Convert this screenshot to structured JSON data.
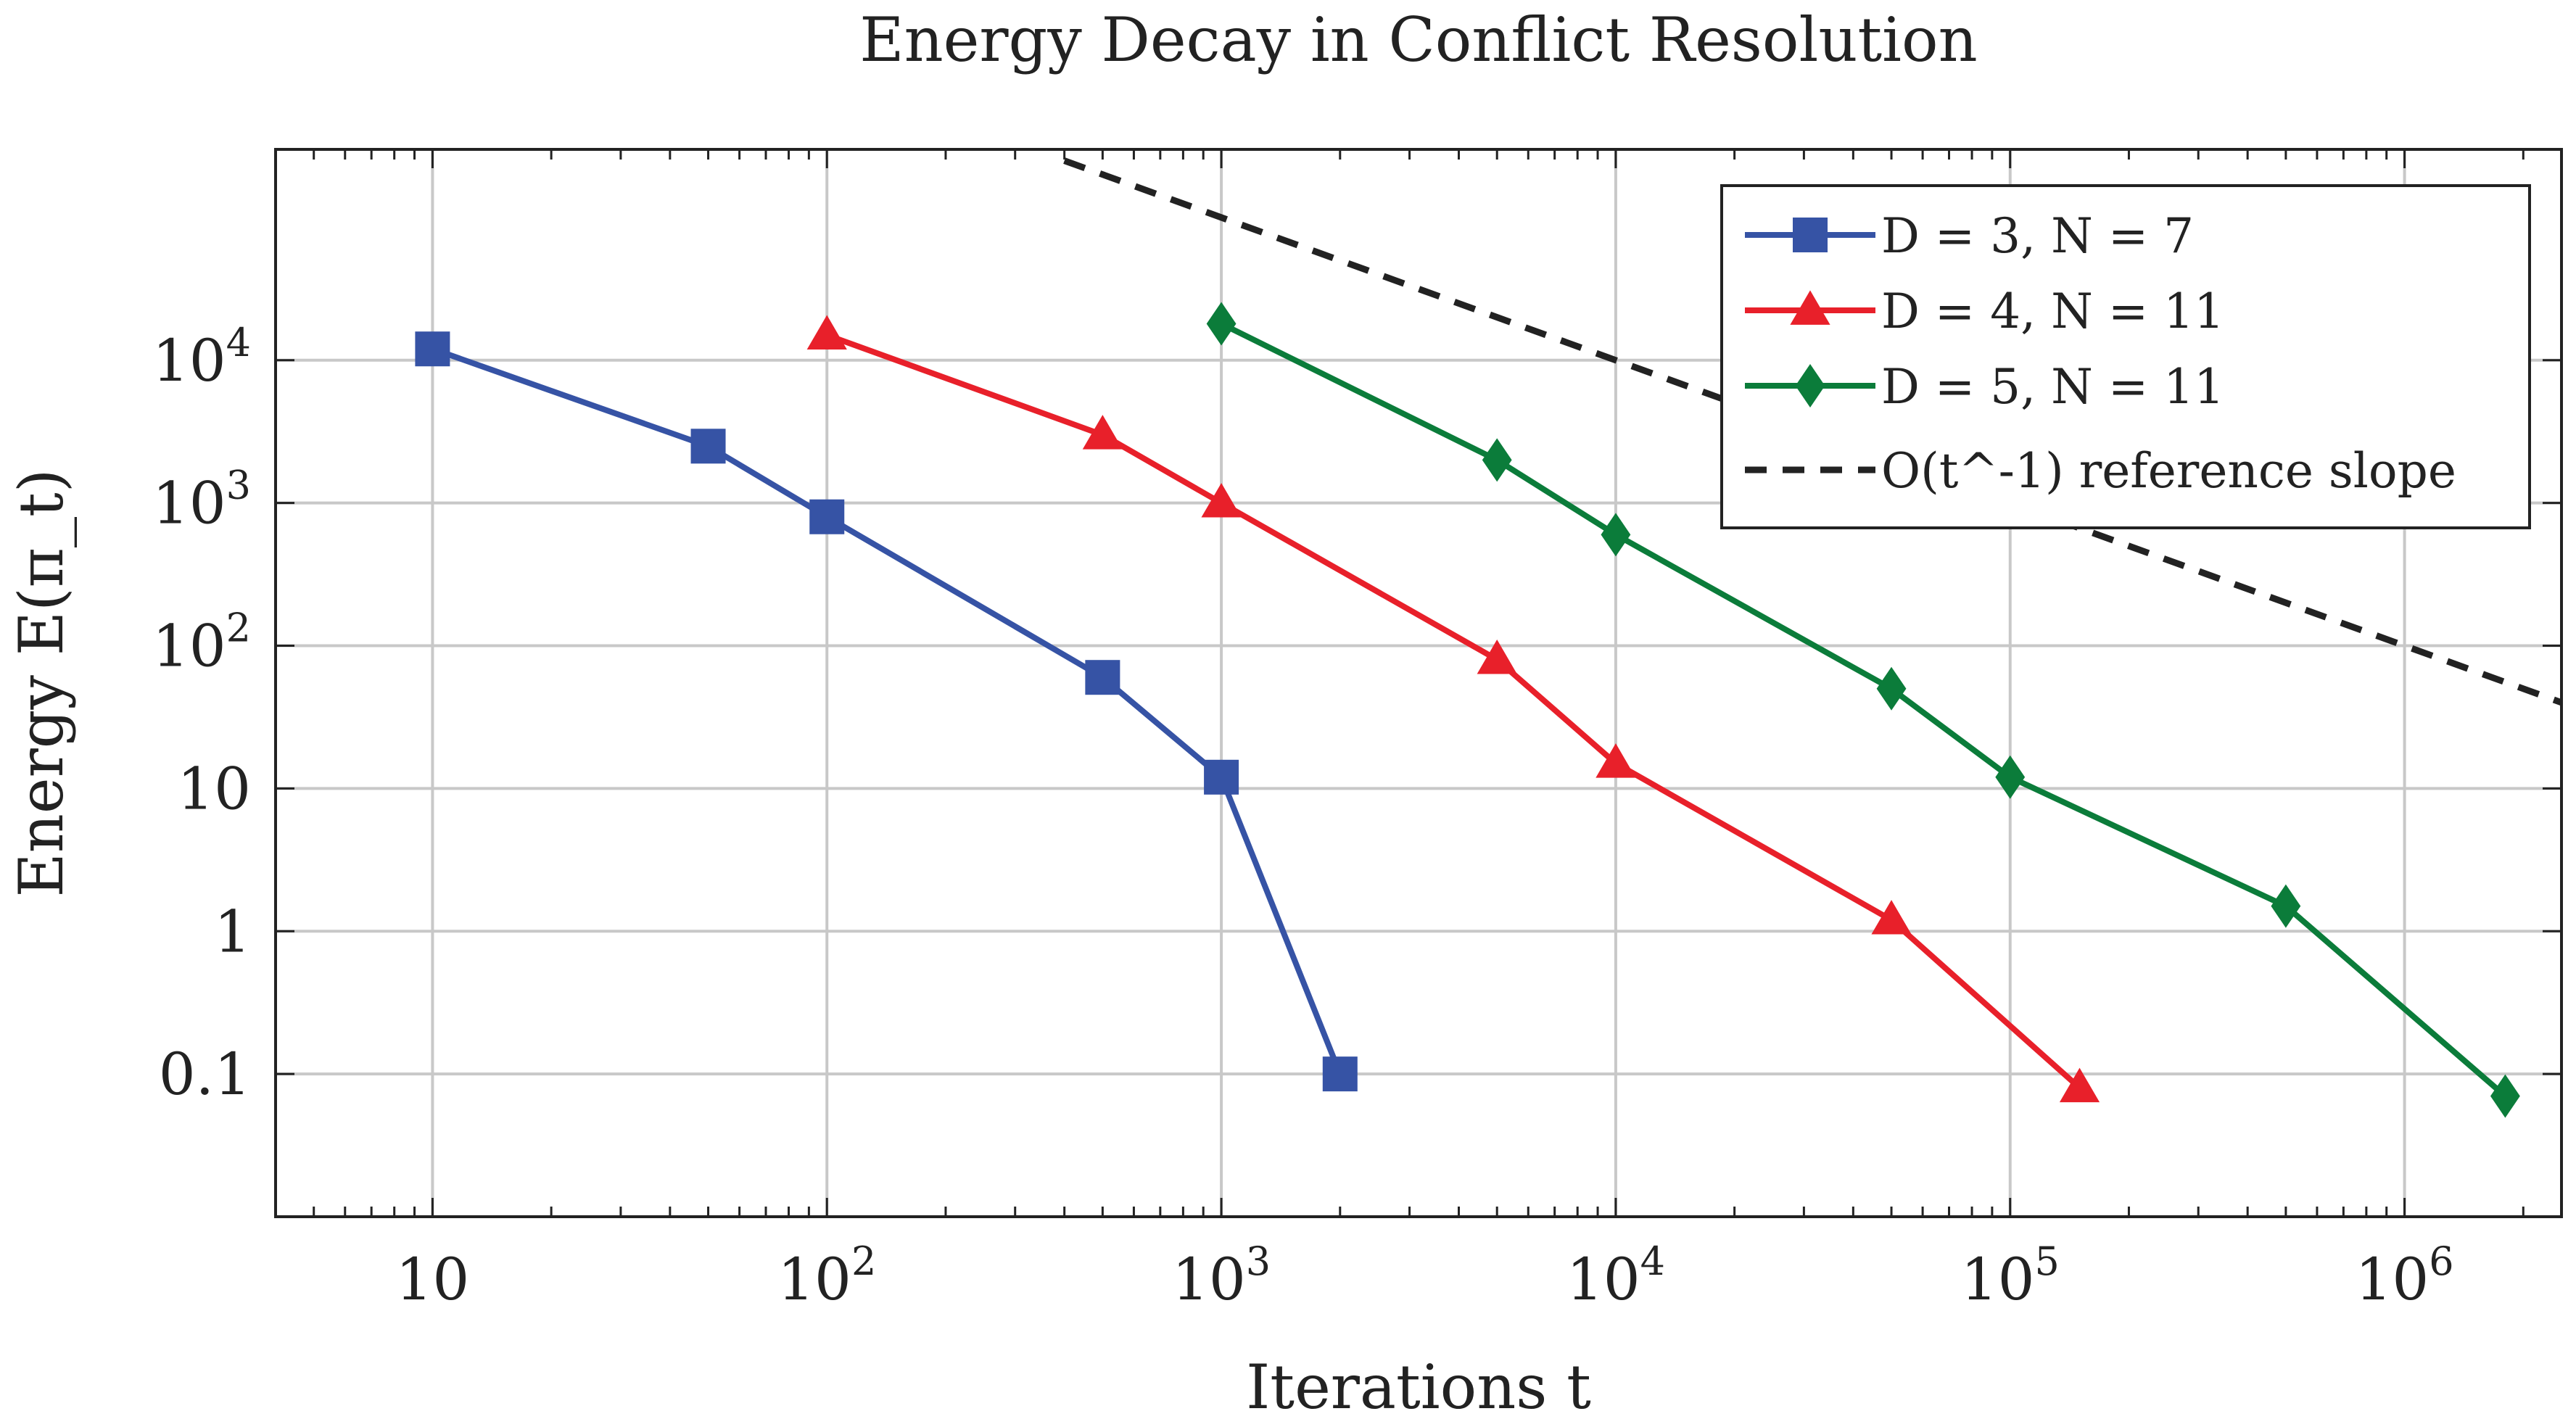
{
  "chart_data": {
    "type": "line",
    "title": "Energy Decay in Conflict Resolution",
    "xlabel": "Iterations t",
    "ylabel": "Energy E(π_t)",
    "xscale": "log",
    "yscale": "log",
    "xlim": [
      4,
      2500000
    ],
    "ylim": [
      0.01,
      300000
    ],
    "grid": true,
    "legend_position": "top-right",
    "x_ticks": [
      {
        "value": 10,
        "base": "10",
        "exp": ""
      },
      {
        "value": 100,
        "base": "10",
        "exp": "2"
      },
      {
        "value": 1000,
        "base": "10",
        "exp": "3"
      },
      {
        "value": 10000,
        "base": "10",
        "exp": "4"
      },
      {
        "value": 100000,
        "base": "10",
        "exp": "5"
      },
      {
        "value": 1000000,
        "base": "10",
        "exp": "6"
      }
    ],
    "y_ticks": [
      {
        "value": 0.1,
        "base": "0.1",
        "exp": ""
      },
      {
        "value": 1,
        "base": "1",
        "exp": ""
      },
      {
        "value": 10,
        "base": "10",
        "exp": ""
      },
      {
        "value": 100,
        "base": "10",
        "exp": "2"
      },
      {
        "value": 1000,
        "base": "10",
        "exp": "3"
      },
      {
        "value": 10000,
        "base": "10",
        "exp": "4"
      }
    ],
    "series": [
      {
        "name": "D = 3, N = 7",
        "color": "#3653a5",
        "marker": "square",
        "dashed": false,
        "x": [
          10,
          50,
          100,
          500,
          1000,
          2000
        ],
        "y": [
          12000,
          2500,
          800,
          60,
          12,
          0.1
        ]
      },
      {
        "name": "D = 4, N = 11",
        "color": "#e8202a",
        "marker": "triangle",
        "dashed": false,
        "x": [
          100,
          500,
          1000,
          5000,
          10000,
          50000,
          150000
        ],
        "y": [
          15000,
          3000,
          1000,
          80,
          15,
          1.2,
          0.08
        ]
      },
      {
        "name": "D = 5, N = 11",
        "color": "#0b7c3a",
        "marker": "diamond",
        "dashed": false,
        "x": [
          1000,
          5000,
          10000,
          50000,
          100000,
          500000,
          1800000
        ],
        "y": [
          18000,
          2000,
          600,
          50,
          12,
          1.5,
          0.07
        ]
      },
      {
        "name": "O(t^-1) reference slope",
        "color": "#222222",
        "marker": "none",
        "dashed": true,
        "x": [
          400,
          2500000
        ],
        "y": [
          250000,
          40
        ]
      }
    ]
  }
}
